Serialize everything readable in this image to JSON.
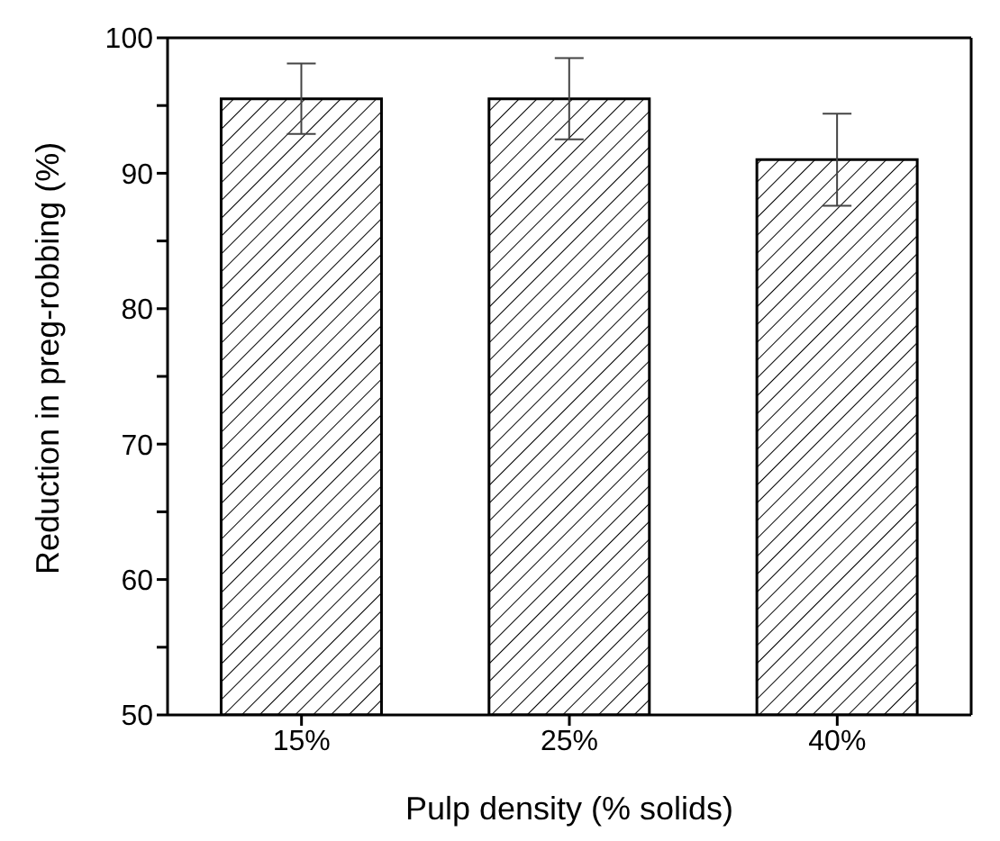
{
  "chart_data": {
    "type": "bar",
    "xlabel": "Pulp density (% solids)",
    "ylabel": "Reduction in preg-robbing (%)",
    "categories": [
      "15%",
      "25%",
      "40%"
    ],
    "values": [
      95.5,
      95.5,
      91.0
    ],
    "errors": [
      2.6,
      3.0,
      3.4
    ],
    "color": "#000000",
    "ylim": [
      50,
      100
    ],
    "yticks": [
      50,
      {
        "value": 55,
        "label": null
      },
      60,
      {
        "value": 65,
        "label": null
      },
      70,
      {
        "value": 75,
        "label": null
      },
      80,
      {
        "value": 85,
        "label": null
      },
      90,
      {
        "value": 95,
        "label": null
      },
      100
    ],
    "grid": false,
    "legend": false
  }
}
